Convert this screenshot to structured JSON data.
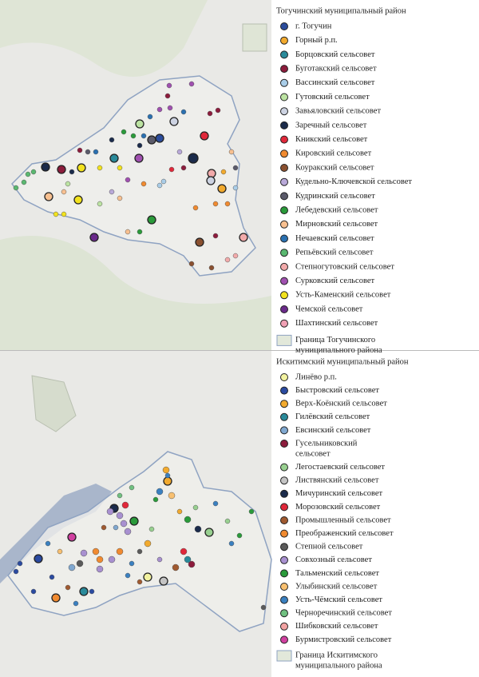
{
  "districts": [
    {
      "title": "Тогучинский муниципальный район",
      "legend": [
        {
          "label": "г. Тогучин",
          "color": "#2b4c9c"
        },
        {
          "label": "Горный р.п.",
          "color": "#f2aa2e"
        },
        {
          "label": "Борцовский сельсовет",
          "color": "#2a8a9a"
        },
        {
          "label": "Буготакский сельсовет",
          "color": "#8c1c3c"
        },
        {
          "label": "Вассинский сельсовет",
          "color": "#a9cde8"
        },
        {
          "label": "Гутовский сельсовет",
          "color": "#bce3a2"
        },
        {
          "label": "Завьяловский сельсовет",
          "color": "#cdd3e2"
        },
        {
          "label": "Заречный сельсовет",
          "color": "#1b2b4b"
        },
        {
          "label": "Кникский сельсовет",
          "color": "#e0283a"
        },
        {
          "label": "Кировский сельсовет",
          "color": "#f08a30"
        },
        {
          "label": "Коуракский сельсовет",
          "color": "#8a5030"
        },
        {
          "label": "Кудельно-Ключевской сельсовет",
          "color": "#b9a9d9"
        },
        {
          "label": "Кудринский сельсовет",
          "color": "#5a5a6a"
        },
        {
          "label": "Лебедевский сельсовет",
          "color": "#2a9a3a"
        },
        {
          "label": "Мирновский сельсовет",
          "color": "#f8c090"
        },
        {
          "label": "Нечаевский сельсовет",
          "color": "#2a70b0"
        },
        {
          "label": "Репьёвский сельсовет",
          "color": "#5ab870"
        },
        {
          "label": "Степногутовский сельсовет",
          "color": "#f2aaaa"
        },
        {
          "label": "Сурковский сельсовет",
          "color": "#a050b0"
        },
        {
          "label": "Усть-Каменский сельсовет",
          "color": "#f2e21e"
        },
        {
          "label": "Чемской сельсовет",
          "color": "#6a2a8a"
        },
        {
          "label": "Шахтинский сельсовет",
          "color": "#f0a0b4"
        }
      ],
      "boundary": {
        "label": [
          "Граница Тогучинского",
          "муниципального района"
        ]
      }
    },
    {
      "title": "Искитимский муниципальный район",
      "legend": [
        {
          "label": "Линёво р.п.",
          "color": "#f2f2a0"
        },
        {
          "label": "Быстровский сельсовет",
          "color": "#2a4aa0"
        },
        {
          "label": "Верх-Коёнский сельсовет",
          "color": "#f2aa2e"
        },
        {
          "label": "Гилёвский сельсовет",
          "color": "#2a8a9a"
        },
        {
          "label": "Евсинский сельсовет",
          "color": "#80a8d0"
        },
        {
          "label": [
            "Гусельниковский",
            "сельсовет"
          ],
          "color": "#8c1c3c"
        },
        {
          "label": "Легостаевский сельсовет",
          "color": "#98d090"
        },
        {
          "label": "Листвянский сельсовет",
          "color": "#c4c4c4"
        },
        {
          "label": "Мичуринский сельсовет",
          "color": "#1b2b4b"
        },
        {
          "label": "Морозовский сельсовет",
          "color": "#e0283a"
        },
        {
          "label": "Промышленный сельсовет",
          "color": "#a05a30"
        },
        {
          "label": "Преображенский сельсовет",
          "color": "#f08a30"
        },
        {
          "label": "Степной сельсовет",
          "color": "#5a5a5a"
        },
        {
          "label": "Совхозный сельсовет",
          "color": "#a890d0"
        },
        {
          "label": "Тальменский сельсовет",
          "color": "#2a9a3a"
        },
        {
          "label": "Улыбинский сельсовет",
          "color": "#f8c070"
        },
        {
          "label": "Усть-Чёмский сельсовет",
          "color": "#3a80c0"
        },
        {
          "label": "Черноречинский сельсовет",
          "color": "#70c080"
        },
        {
          "label": "Шибковский сельсовет",
          "color": "#f2a2a2"
        },
        {
          "label": "Бурмистровский сельсовет",
          "color": "#d040a0"
        }
      ],
      "boundary": {
        "label": [
          "Граница Искитимского",
          "муниципального района"
        ]
      }
    }
  ]
}
